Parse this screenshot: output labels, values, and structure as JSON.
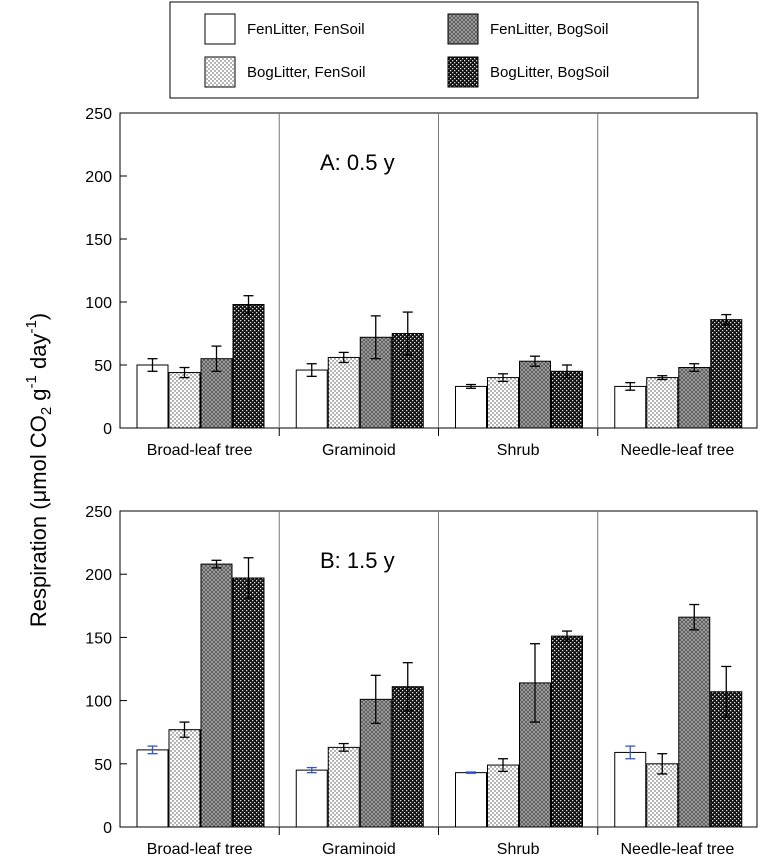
{
  "chart_data": [
    {
      "type": "bar",
      "panel_label": "A: 0.5 y",
      "categories": [
        "Broad-leaf tree",
        "Graminoid",
        "Shrub",
        "Needle-leaf tree"
      ],
      "series": [
        {
          "name": "FenLitter, FenSoil",
          "values": [
            50,
            46,
            33,
            33
          ],
          "errors": [
            5,
            5,
            1.5,
            3
          ]
        },
        {
          "name": "BogLitter, FenSoil",
          "values": [
            44,
            56,
            40,
            40
          ],
          "errors": [
            4,
            4,
            3,
            1.5
          ]
        },
        {
          "name": "FenLitter, BogSoil",
          "values": [
            55,
            72,
            53,
            48
          ],
          "errors": [
            10,
            17,
            4,
            3
          ]
        },
        {
          "name": "BogLitter, BogSoil",
          "values": [
            98,
            75,
            45,
            86
          ],
          "errors": [
            7,
            17,
            5,
            4
          ]
        }
      ],
      "ylim": [
        0,
        250
      ],
      "yticks": [
        0,
        50,
        100,
        150,
        200,
        250
      ]
    },
    {
      "type": "bar",
      "panel_label": "B: 1.5 y",
      "categories": [
        "Broad-leaf tree",
        "Graminoid",
        "Shrub",
        "Needle-leaf tree"
      ],
      "series": [
        {
          "name": "FenLitter, FenSoil",
          "values": [
            61,
            45,
            43,
            59
          ],
          "errors": [
            3,
            2,
            0.5,
            5
          ]
        },
        {
          "name": "BogLitter, FenSoil",
          "values": [
            77,
            63,
            49,
            50
          ],
          "errors": [
            6,
            3,
            5,
            8
          ]
        },
        {
          "name": "FenLitter, BogSoil",
          "values": [
            208,
            101,
            114,
            166
          ],
          "errors": [
            3,
            19,
            31,
            10
          ]
        },
        {
          "name": "BogLitter, BogSoil",
          "values": [
            197,
            111,
            151,
            107
          ],
          "errors": [
            16,
            19,
            4,
            20
          ]
        }
      ],
      "ylim": [
        0,
        250
      ],
      "yticks": [
        0,
        50,
        100,
        150,
        200,
        250
      ]
    }
  ],
  "ylabel": {
    "prefix": "Respiration (μmol CO",
    "sub": "2",
    "mid": " g",
    "sup1": "-1",
    "mid2": " day",
    "sup2": "-1",
    "suffix": ")"
  },
  "legend": [
    {
      "label": "FenLitter, FenSoil",
      "fill": "white"
    },
    {
      "label": "FenLitter, BogSoil",
      "fill": "gray-cross"
    },
    {
      "label": "BogLitter, FenSoil",
      "fill": "dots"
    },
    {
      "label": "BogLitter, BogSoil",
      "fill": "black-check"
    }
  ],
  "colors": {
    "fen_bog_gray": "#9a9a9a",
    "bog_bog_dark": "#1a1a1a",
    "error_bar_blue": "#3355cc"
  }
}
